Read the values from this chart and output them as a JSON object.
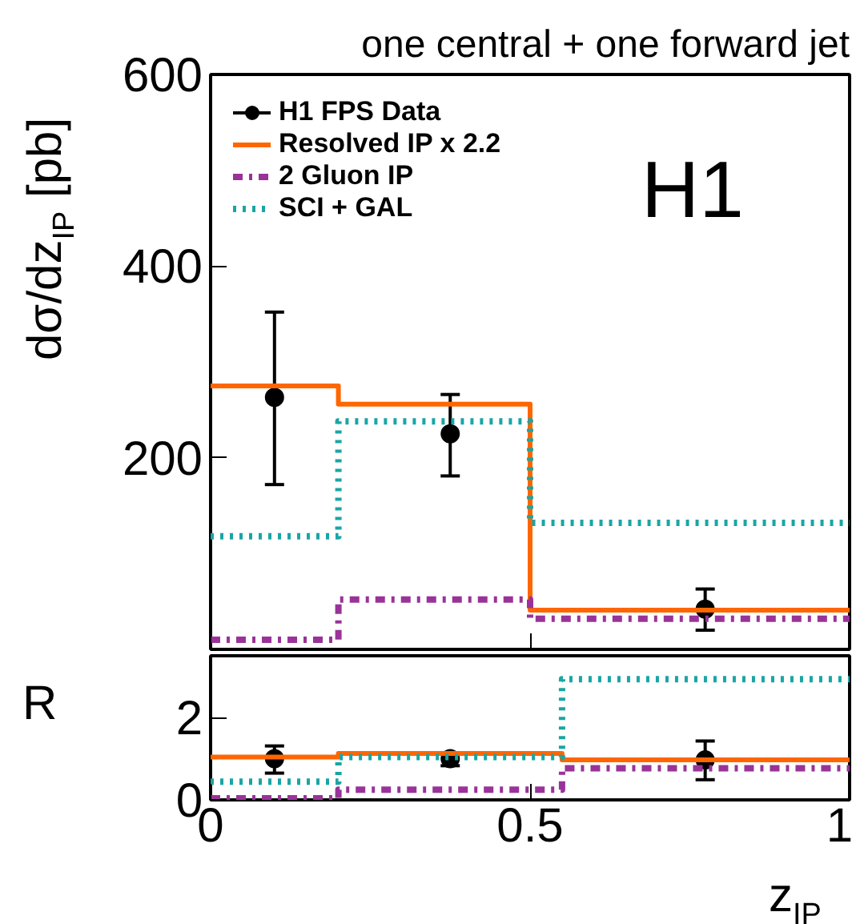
{
  "chart_data": [
    {
      "type": "step",
      "title": "one central + one forward jet",
      "ylabel": "dσ/dz$_{IP}$ [pb]",
      "xlim": [
        0,
        1
      ],
      "ylim": [
        0,
        600
      ],
      "xticks": [
        0,
        0.5,
        1
      ],
      "yticks": [
        200,
        400,
        600
      ],
      "tick_labels": "y",
      "legend": "top left",
      "grid": false,
      "annotations": [
        "H1"
      ],
      "series": [
        {
          "name": "H1 FPS Data",
          "type": "scatter",
          "marker": "circle",
          "color": "#000000",
          "x": [
            0.1,
            0.375,
            0.774
          ],
          "values": [
            263,
            225,
            42
          ],
          "errors": [
            [
              172,
              352
            ],
            [
              181,
              266
            ],
            [
              20,
              63
            ]
          ]
        },
        {
          "name": "Resolved IP x 2.2",
          "color": "#ff6600",
          "line_style": "solid",
          "x": [
            0,
            0.2,
            0.5,
            1
          ],
          "values": [
            275,
            256,
            41,
            41
          ]
        },
        {
          "name": "2 Gluon IP",
          "color": "#993399",
          "line_style": "dashdot",
          "x": [
            0,
            0.2,
            0.5,
            1
          ],
          "values": [
            10,
            52,
            32,
            32
          ]
        },
        {
          "name": "SCI + GAL",
          "color": "#1aa5a5",
          "line_style": "dotted",
          "x": [
            0,
            0.2,
            0.5,
            1
          ],
          "values": [
            118,
            238,
            132,
            132
          ]
        }
      ]
    },
    {
      "type": "step",
      "ylabel": "R",
      "xlabel": "z$_{IP}$",
      "xlim": [
        0,
        1
      ],
      "ylim": [
        0,
        3.5
      ],
      "xticks": [
        0,
        0.5,
        1
      ],
      "yticks": [
        0,
        2
      ],
      "grid": false,
      "series": [
        {
          "type": "scatter",
          "marker": "circle",
          "color": "#000000",
          "x": [
            0.1,
            0.375,
            0.774
          ],
          "values": [
            1.0,
            1.0,
            0.97
          ],
          "errors": [
            [
              0.65,
              1.31
            ],
            [
              0.83,
              1.11
            ],
            [
              0.49,
              1.43
            ]
          ]
        },
        {
          "color": "#ff6600",
          "line_style": "solid",
          "x": [
            0,
            0.2,
            0.55,
            1
          ],
          "values": [
            1.04,
            1.13,
            0.97,
            0.97
          ]
        },
        {
          "color": "#993399",
          "line_style": "dashdot",
          "x": [
            0,
            0.2,
            0.55,
            1
          ],
          "values": [
            0.04,
            0.25,
            0.77,
            0.77
          ]
        },
        {
          "color": "#1aa5a5",
          "line_style": "dotted",
          "x": [
            0,
            0.2,
            0.55,
            1
          ],
          "values": [
            0.44,
            1.04,
            2.93,
            2.93
          ]
        }
      ]
    }
  ]
}
